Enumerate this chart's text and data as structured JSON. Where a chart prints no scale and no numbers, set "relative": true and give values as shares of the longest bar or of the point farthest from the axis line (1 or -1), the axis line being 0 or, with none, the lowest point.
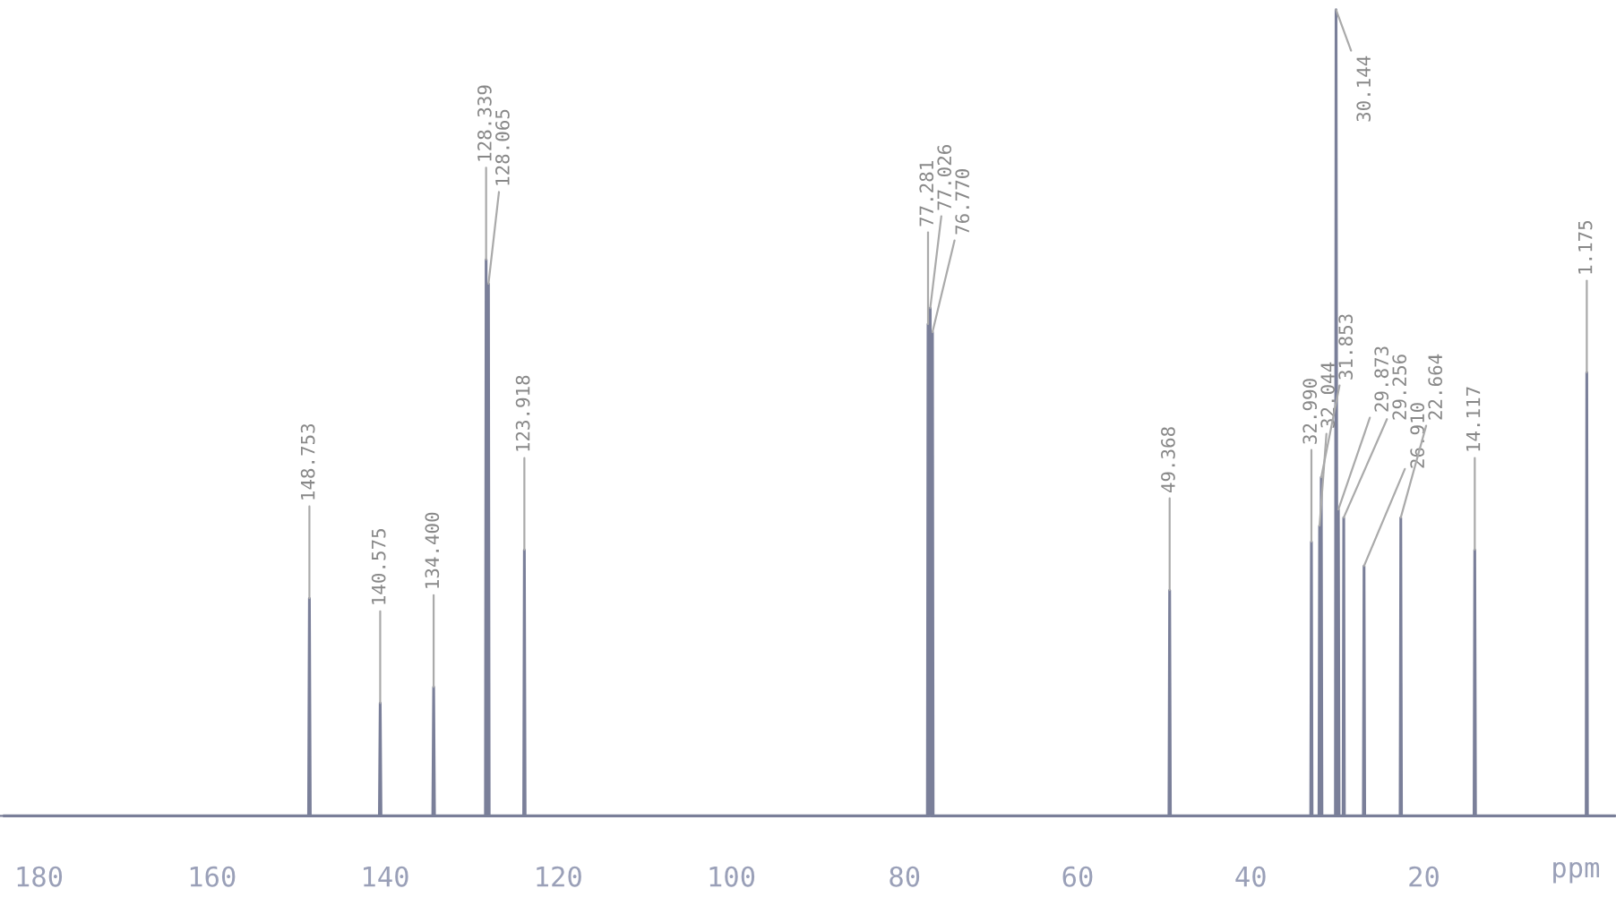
{
  "chart_data": {
    "type": "line",
    "relative": true,
    "xlabel": "ppm",
    "xlim": [
      184.5,
      -2.2
    ],
    "xticks": [
      180,
      160,
      140,
      120,
      100,
      80,
      60,
      40,
      20
    ],
    "tick_labels": "x",
    "grid": false,
    "legend": false,
    "marker": "none",
    "line_style": "solid",
    "series": [
      {
        "color": "#7a7f99",
        "x": [
          184.0,
          148.85,
          148.753,
          148.65,
          140.67,
          140.575,
          140.48,
          134.5,
          134.4,
          134.3,
          128.42,
          128.339,
          128.2,
          128.065,
          127.98,
          124.0,
          123.918,
          123.83,
          77.36,
          77.281,
          77.15,
          77.026,
          76.9,
          76.77,
          76.69,
          49.45,
          49.368,
          49.28,
          33.07,
          32.99,
          32.91,
          32.12,
          32.044,
          31.95,
          31.853,
          31.77,
          30.22,
          30.144,
          30.01,
          29.873,
          29.79,
          29.33,
          29.256,
          29.18,
          26.99,
          26.91,
          26.83,
          22.74,
          22.664,
          22.58,
          14.2,
          14.117,
          14.03,
          1.25,
          1.175,
          1.1,
          -2.0
        ],
        "values": [
          0,
          0,
          0.27,
          0,
          0,
          0.14,
          0,
          0,
          0.16,
          0,
          0,
          0.69,
          0,
          0.66,
          0,
          0,
          0.33,
          0,
          0,
          0.61,
          0,
          0.63,
          0,
          0.6,
          0,
          0,
          0.28,
          0,
          0,
          0.34,
          0,
          0,
          0.36,
          0,
          0.42,
          0,
          0,
          1.0,
          0,
          0.38,
          0,
          0,
          0.37,
          0,
          0,
          0.31,
          0,
          0,
          0.37,
          0,
          0,
          0.33,
          0,
          0,
          0.55,
          0,
          0
        ]
      }
    ],
    "annotations": [
      {
        "text": "148.753",
        "x": 148.753,
        "y": 0.27
      },
      {
        "text": "140.575",
        "x": 140.575,
        "y": 0.14
      },
      {
        "text": "134.400",
        "x": 134.4,
        "y": 0.16
      },
      {
        "text": "128.339",
        "x": 128.339,
        "y": 0.69
      },
      {
        "text": "128.065",
        "x": 128.065,
        "y": 0.66
      },
      {
        "text": "123.918",
        "x": 123.918,
        "y": 0.33
      },
      {
        "text": "77.281",
        "x": 77.281,
        "y": 0.61
      },
      {
        "text": "77.026",
        "x": 77.026,
        "y": 0.63
      },
      {
        "text": "76.770",
        "x": 76.77,
        "y": 0.6
      },
      {
        "text": "49.368",
        "x": 49.368,
        "y": 0.28
      },
      {
        "text": "32.990",
        "x": 32.99,
        "y": 0.34
      },
      {
        "text": "32.044",
        "x": 32.044,
        "y": 0.36
      },
      {
        "text": "31.853",
        "x": 31.853,
        "y": 0.42
      },
      {
        "text": "30.144",
        "x": 30.144,
        "y": 1.0
      },
      {
        "text": "29.873",
        "x": 29.873,
        "y": 0.38
      },
      {
        "text": "29.256",
        "x": 29.256,
        "y": 0.37
      },
      {
        "text": "26.910",
        "x": 26.91,
        "y": 0.31
      },
      {
        "text": "22.664",
        "x": 22.664,
        "y": 0.37
      },
      {
        "text": "14.117",
        "x": 14.117,
        "y": 0.33
      },
      {
        "text": "1.175",
        "x": 1.175,
        "y": 0.55
      }
    ]
  }
}
